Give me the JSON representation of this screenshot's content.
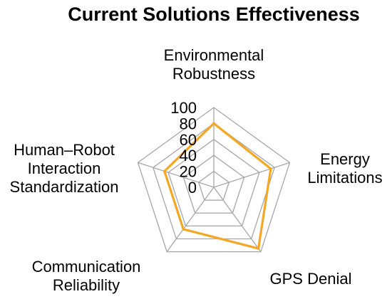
{
  "chart_data": {
    "type": "radar",
    "title": "Current Solutions Effectiveness",
    "axes": [
      {
        "label_lines": [
          "Environmental",
          "Robustness"
        ]
      },
      {
        "label_lines": [
          "Energy",
          "Limitations"
        ]
      },
      {
        "label_lines": [
          "GPS Denial"
        ]
      },
      {
        "label_lines": [
          "Communication",
          "Reliability"
        ]
      },
      {
        "label_lines": [
          "Human–Robot",
          "Interaction",
          "Standardization"
        ]
      }
    ],
    "rlim": [
      0,
      100
    ],
    "ticks": [
      "0",
      "20",
      "40",
      "60",
      "80",
      "100"
    ],
    "grid": true,
    "series": [
      {
        "values": [
          80,
          75,
          95,
          65,
          65
        ],
        "color": "#f5a623"
      }
    ]
  }
}
